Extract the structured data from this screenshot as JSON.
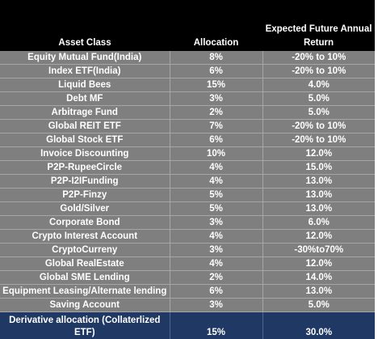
{
  "table": {
    "headers": {
      "asset_class": "Asset Class",
      "allocation": "Allocation",
      "expected_return": "Expected Future Annual Return"
    },
    "rows": [
      {
        "asset": "Equity Mutual Fund(India)",
        "allocation": "8%",
        "return": "-20% to 10%"
      },
      {
        "asset": "Index ETF(India)",
        "allocation": "6%",
        "return": "-20% to 10%"
      },
      {
        "asset": "Liquid Bees",
        "allocation": "15%",
        "return": "4.0%"
      },
      {
        "asset": "Debt MF",
        "allocation": "3%",
        "return": "5.0%"
      },
      {
        "asset": "Arbitrage Fund",
        "allocation": "2%",
        "return": "5.0%"
      },
      {
        "asset": "Global REIT ETF",
        "allocation": "7%",
        "return": "-20% to 10%"
      },
      {
        "asset": "Global  Stock ETF",
        "allocation": "6%",
        "return": "-20% to 10%"
      },
      {
        "asset": "Invoice Discounting",
        "allocation": "10%",
        "return": "12.0%"
      },
      {
        "asset": "P2P-RupeeCircle",
        "allocation": "4%",
        "return": "15.0%"
      },
      {
        "asset": "P2P-I2IFunding",
        "allocation": "4%",
        "return": "13.0%"
      },
      {
        "asset": "P2P-Finzy",
        "allocation": "5%",
        "return": "13.0%"
      },
      {
        "asset": "Gold/Silver",
        "allocation": "5%",
        "return": "13.0%"
      },
      {
        "asset": "Corporate Bond",
        "allocation": "3%",
        "return": "6.0%"
      },
      {
        "asset": "Crypto Interest Account",
        "allocation": "4%",
        "return": "12.0%"
      },
      {
        "asset": "CryptoCurreny",
        "allocation": "3%",
        "return": "-30%to70%"
      },
      {
        "asset": "Global RealEstate",
        "allocation": "4%",
        "return": "12.0%"
      },
      {
        "asset": "Global SME Lending",
        "allocation": "2%",
        "return": "14.0%"
      },
      {
        "asset": "Equipment Leasing/Alternate lending",
        "allocation": "6%",
        "return": "13.0%"
      },
      {
        "asset": "Saving Account",
        "allocation": "3%",
        "return": "5.0%"
      }
    ],
    "footer": {
      "asset": "Derivative allocation (Collaterlized ETF)",
      "allocation": "15%",
      "return": "30.0%"
    }
  },
  "colors": {
    "header_bg": "#000000",
    "row_bg": "#7f7f7f",
    "footer_bg": "#1f3864",
    "text": "#ffffff"
  }
}
